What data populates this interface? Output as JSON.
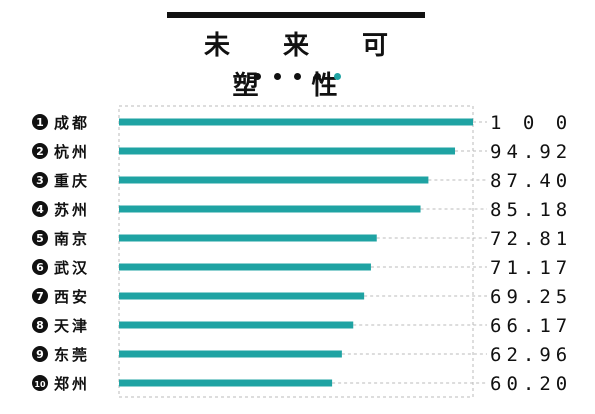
{
  "title": "未 来 可 塑 性",
  "colors": {
    "bar": "#1fa3a3",
    "dot": "#111111",
    "accent_dot": "#1fa3a3"
  },
  "chart_data": {
    "type": "bar",
    "orientation": "horizontal",
    "title": "未 来 可 塑 性",
    "categories": [
      "成都",
      "杭州",
      "重庆",
      "苏州",
      "南京",
      "武汉",
      "西安",
      "天津",
      "东莞",
      "郑州"
    ],
    "ranks": [
      "1",
      "2",
      "3",
      "4",
      "5",
      "6",
      "7",
      "8",
      "9",
      "10"
    ],
    "values": [
      100,
      94.92,
      87.4,
      85.18,
      72.81,
      71.17,
      69.25,
      66.17,
      62.96,
      60.2
    ],
    "value_labels": [
      "1 0 0",
      "94.92",
      "87.40",
      "85.18",
      "72.81",
      "71.17",
      "69.25",
      "66.17",
      "62.96",
      "60.20"
    ],
    "xlim": [
      0,
      100
    ],
    "grid": true
  }
}
